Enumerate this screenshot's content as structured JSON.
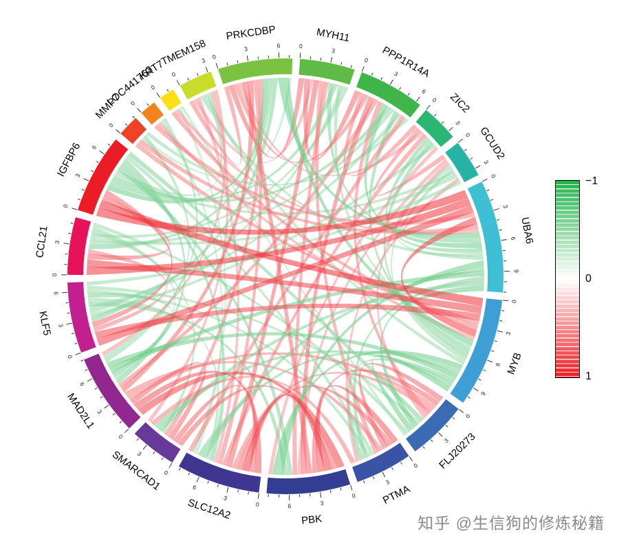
{
  "chart_data": {
    "type": "chord",
    "title": "",
    "description": "Circos chord diagram of pairwise gene correlations; ribbon color encodes correlation from -1 (green) to 1 (red); outer axis ticks mark cumulative link weight per gene",
    "genes": [
      {
        "name": "PRKCDBP",
        "color": "#7CC242"
      },
      {
        "name": "MYH11",
        "color": "#5FBB46"
      },
      {
        "name": "PPP1R14A",
        "color": "#3FB54A"
      },
      {
        "name": "ZIC2",
        "color": "#2BB673"
      },
      {
        "name": "GCUD2",
        "color": "#27B2A6"
      },
      {
        "name": "UBA6",
        "color": "#3FBFD4"
      },
      {
        "name": "MYB",
        "color": "#3D9FD6"
      },
      {
        "name": "FLJ20273",
        "color": "#3B6BB3"
      },
      {
        "name": "PTMA",
        "color": "#3A53A4"
      },
      {
        "name": "PBK",
        "color": "#333E92"
      },
      {
        "name": "SLC12A2",
        "color": "#3F3691"
      },
      {
        "name": "SMARCAD1",
        "color": "#66399A"
      },
      {
        "name": "MAD2L1",
        "color": "#92278F"
      },
      {
        "name": "KLF5",
        "color": "#C2208E"
      },
      {
        "name": "CCL21",
        "color": "#E8125B"
      },
      {
        "name": "IGFBP6",
        "color": "#EC1C24"
      },
      {
        "name": "MMP7",
        "color": "#EF4123"
      },
      {
        "name": "LOC441763",
        "color": "#F58220"
      },
      {
        "name": "KRT7",
        "color": "#FFDE17"
      },
      {
        "name": "TMEM158",
        "color": "#C9DB2B"
      }
    ],
    "links": [
      {
        "s": "TMEM158",
        "t": "PRKCDBP",
        "v": 0.5
      },
      {
        "s": "PRKCDBP",
        "t": "MYH11",
        "v": 0.6
      },
      {
        "s": "MYH11",
        "t": "PPP1R14A",
        "v": 0.6
      },
      {
        "s": "PPP1R14A",
        "t": "ZIC2",
        "v": 0.5
      },
      {
        "s": "ZIC2",
        "t": "GCUD2",
        "v": 0.5
      },
      {
        "s": "PRKCDBP",
        "t": "PPP1R14A",
        "v": 0.5
      },
      {
        "s": "TMEM158",
        "t": "MYH11",
        "v": 0.4
      },
      {
        "s": "PRKCDBP",
        "t": "ZIC2",
        "v": 0.4
      },
      {
        "s": "IGFBP6",
        "t": "UBA6",
        "v": 0.9
      },
      {
        "s": "IGFBP6",
        "t": "MYB",
        "v": 0.9
      },
      {
        "s": "CCL21",
        "t": "UBA6",
        "v": 0.85
      },
      {
        "s": "CCL21",
        "t": "MYB",
        "v": 0.8
      },
      {
        "s": "KLF5",
        "t": "UBA6",
        "v": 0.8
      },
      {
        "s": "KLF5",
        "t": "MYB",
        "v": 0.75
      },
      {
        "s": "MMP7",
        "t": "MYB",
        "v": 0.5
      },
      {
        "s": "LOC441763",
        "t": "UBA6",
        "v": 0.5
      },
      {
        "s": "KRT7",
        "t": "MYB",
        "v": 0.5
      },
      {
        "s": "IGFBP6",
        "t": "CCL21",
        "v": 0.6
      },
      {
        "s": "CCL21",
        "t": "KLF5",
        "v": 0.5
      },
      {
        "s": "IGFBP6",
        "t": "KLF5",
        "v": 0.6
      },
      {
        "s": "UBA6",
        "t": "MYB",
        "v": 0.8
      },
      {
        "s": "MMP7",
        "t": "UBA6",
        "v": 0.5
      },
      {
        "s": "KRT7",
        "t": "UBA6",
        "v": 0.4
      },
      {
        "s": "LOC441763",
        "t": "MYB",
        "v": 0.4
      },
      {
        "s": "MAD2L1",
        "t": "PBK",
        "v": 0.8
      },
      {
        "s": "MAD2L1",
        "t": "SLC12A2",
        "v": 0.7
      },
      {
        "s": "SMARCAD1",
        "t": "PBK",
        "v": 0.6
      },
      {
        "s": "SMARCAD1",
        "t": "SLC12A2",
        "v": 0.6
      },
      {
        "s": "SLC12A2",
        "t": "PBK",
        "v": 0.8
      },
      {
        "s": "PBK",
        "t": "PTMA",
        "v": 0.7
      },
      {
        "s": "SLC12A2",
        "t": "PTMA",
        "v": 0.6
      },
      {
        "s": "MAD2L1",
        "t": "SMARCAD1",
        "v": 0.6
      },
      {
        "s": "FLJ20273",
        "t": "PTMA",
        "v": 0.6
      },
      {
        "s": "FLJ20273",
        "t": "PBK",
        "v": 0.6
      },
      {
        "s": "FLJ20273",
        "t": "MAD2L1",
        "v": 0.5
      },
      {
        "s": "FLJ20273",
        "t": "SLC12A2",
        "v": 0.5
      },
      {
        "s": "MAD2L1",
        "t": "PTMA",
        "v": 0.5
      },
      {
        "s": "PRKCDBP",
        "t": "PBK",
        "v": 0.6
      },
      {
        "s": "PRKCDBP",
        "t": "MAD2L1",
        "v": 0.6
      },
      {
        "s": "MYH11",
        "t": "SLC12A2",
        "v": 0.6
      },
      {
        "s": "MYH11",
        "t": "PTMA",
        "v": 0.5
      },
      {
        "s": "PPP1R14A",
        "t": "PBK",
        "v": 0.6
      },
      {
        "s": "PPP1R14A",
        "t": "MAD2L1",
        "v": 0.5
      },
      {
        "s": "ZIC2",
        "t": "SLC12A2",
        "v": 0.5
      },
      {
        "s": "GCUD2",
        "t": "PBK",
        "v": 0.4
      },
      {
        "s": "PRKCDBP",
        "t": "SLC12A2",
        "v": 0.5
      },
      {
        "s": "PRKCDBP",
        "t": "SMARCAD1",
        "v": 0.5
      },
      {
        "s": "MYH11",
        "t": "PBK",
        "v": 0.5
      },
      {
        "s": "PPP1R14A",
        "t": "FLJ20273",
        "v": 0.5
      },
      {
        "s": "TMEM158",
        "t": "SLC12A2",
        "v": 0.4
      },
      {
        "s": "GCUD2",
        "t": "FLJ20273",
        "v": 0.4
      },
      {
        "s": "PRKCDBP",
        "t": "IGFBP6",
        "v": -0.6
      },
      {
        "s": "PRKCDBP",
        "t": "CCL21",
        "v": -0.5
      },
      {
        "s": "PRKCDBP",
        "t": "KLF5",
        "v": -0.5
      },
      {
        "s": "PRKCDBP",
        "t": "UBA6",
        "v": -0.6
      },
      {
        "s": "PRKCDBP",
        "t": "MYB",
        "v": -0.6
      },
      {
        "s": "MYH11",
        "t": "UBA6",
        "v": -0.5
      },
      {
        "s": "MYH11",
        "t": "IGFBP6",
        "v": -0.5
      },
      {
        "s": "MYH11",
        "t": "MYB",
        "v": -0.4
      },
      {
        "s": "PPP1R14A",
        "t": "UBA6",
        "v": -0.6
      },
      {
        "s": "PPP1R14A",
        "t": "IGFBP6",
        "v": -0.5
      },
      {
        "s": "PPP1R14A",
        "t": "CCL21",
        "v": -0.4
      },
      {
        "s": "PPP1R14A",
        "t": "MYB",
        "v": -0.5
      },
      {
        "s": "ZIC2",
        "t": "UBA6",
        "v": -0.5
      },
      {
        "s": "ZIC2",
        "t": "MYB",
        "v": -0.5
      },
      {
        "s": "GCUD2",
        "t": "UBA6",
        "v": -0.4
      },
      {
        "s": "GCUD2",
        "t": "MYB",
        "v": -0.4
      },
      {
        "s": "GCUD2",
        "t": "IGFBP6",
        "v": -0.4
      },
      {
        "s": "TMEM158",
        "t": "UBA6",
        "v": -0.4
      },
      {
        "s": "TMEM158",
        "t": "MYB",
        "v": -0.4
      },
      {
        "s": "TMEM158",
        "t": "IGFBP6",
        "v": -0.4
      },
      {
        "s": "ZIC2",
        "t": "KLF5",
        "v": -0.4
      },
      {
        "s": "MYH11",
        "t": "KLF5",
        "v": -0.4
      },
      {
        "s": "PPP1R14A",
        "t": "KLF5",
        "v": -0.4
      },
      {
        "s": "GCUD2",
        "t": "CCL21",
        "v": -0.4
      },
      {
        "s": "PRKCDBP",
        "t": "MMP7",
        "v": -0.3
      },
      {
        "s": "MYH11",
        "t": "CCL21",
        "v": -0.4
      },
      {
        "s": "IGFBP6",
        "t": "PBK",
        "v": -0.5
      },
      {
        "s": "IGFBP6",
        "t": "SLC12A2",
        "v": -0.5
      },
      {
        "s": "IGFBP6",
        "t": "MAD2L1",
        "v": -0.5
      },
      {
        "s": "IGFBP6",
        "t": "PTMA",
        "v": -0.4
      },
      {
        "s": "IGFBP6",
        "t": "FLJ20273",
        "v": -0.5
      },
      {
        "s": "CCL21",
        "t": "MAD2L1",
        "v": -0.4
      },
      {
        "s": "CCL21",
        "t": "SMARCAD1",
        "v": -0.4
      },
      {
        "s": "KLF5",
        "t": "PBK",
        "v": -0.5
      },
      {
        "s": "KLF5",
        "t": "SLC12A2",
        "v": -0.4
      },
      {
        "s": "KLF5",
        "t": "MAD2L1",
        "v": -0.5
      },
      {
        "s": "KLF5",
        "t": "PTMA",
        "v": -0.4
      },
      {
        "s": "KLF5",
        "t": "FLJ20273",
        "v": -0.4
      },
      {
        "s": "UBA6",
        "t": "PBK",
        "v": -0.6
      },
      {
        "s": "UBA6",
        "t": "SLC12A2",
        "v": -0.5
      },
      {
        "s": "UBA6",
        "t": "MAD2L1",
        "v": -0.6
      },
      {
        "s": "UBA6",
        "t": "PTMA",
        "v": -0.5
      },
      {
        "s": "UBA6",
        "t": "SMARCAD1",
        "v": -0.5
      },
      {
        "s": "UBA6",
        "t": "FLJ20273",
        "v": -0.6
      },
      {
        "s": "MYB",
        "t": "PBK",
        "v": -0.6
      },
      {
        "s": "MYB",
        "t": "SLC12A2",
        "v": -0.5
      },
      {
        "s": "MYB",
        "t": "MAD2L1",
        "v": -0.6
      },
      {
        "s": "MYB",
        "t": "SMARCAD1",
        "v": -0.5
      },
      {
        "s": "MYB",
        "t": "PTMA",
        "v": -0.5
      },
      {
        "s": "MYB",
        "t": "FLJ20273",
        "v": -0.6
      },
      {
        "s": "LOC441763",
        "t": "SLC12A2",
        "v": -0.3
      },
      {
        "s": "KRT7",
        "t": "SLC12A2",
        "v": -0.3
      },
      {
        "s": "CCL21",
        "t": "FLJ20273",
        "v": -0.4
      },
      {
        "s": "MMP7",
        "t": "MAD2L1",
        "v": -0.4
      },
      {
        "s": "LOC441763",
        "t": "MAD2L1",
        "v": -0.4
      },
      {
        "s": "PPP1R14A",
        "t": "SLC12A2",
        "v": 0.5
      },
      {
        "s": "PPP1R14A",
        "t": "MMP7",
        "v": -0.4
      },
      {
        "s": "ZIC2",
        "t": "PBK",
        "v": 0.4
      },
      {
        "s": "GCUD2",
        "t": "PTMA",
        "v": 0.4
      },
      {
        "s": "GCUD2",
        "t": "KLF5",
        "v": -0.4
      },
      {
        "s": "FLJ20273",
        "t": "KRT7",
        "v": -0.3
      },
      {
        "s": "SMARCAD1",
        "t": "PTMA",
        "v": 0.5
      },
      {
        "s": "TMEM158",
        "t": "SMARCAD1",
        "v": 0.4
      },
      {
        "s": "TMEM158",
        "t": "MAD2L1",
        "v": 0.4
      }
    ],
    "axis": {
      "minor_tick": 1,
      "major_tick": 3,
      "visible_tick_labels": [
        0,
        3,
        6,
        9
      ]
    },
    "legend": {
      "labels": [
        "−1",
        "0",
        "1"
      ],
      "color_top": "#23B24B",
      "color_mid": "#FFFFFF",
      "color_bottom": "#ED1B23",
      "range": [
        -1,
        1
      ]
    },
    "layout": {
      "start_angle": -18,
      "gap_degrees": 2,
      "legend_position": "right"
    }
  },
  "watermark": "知乎 @生信狗的修炼秘籍"
}
